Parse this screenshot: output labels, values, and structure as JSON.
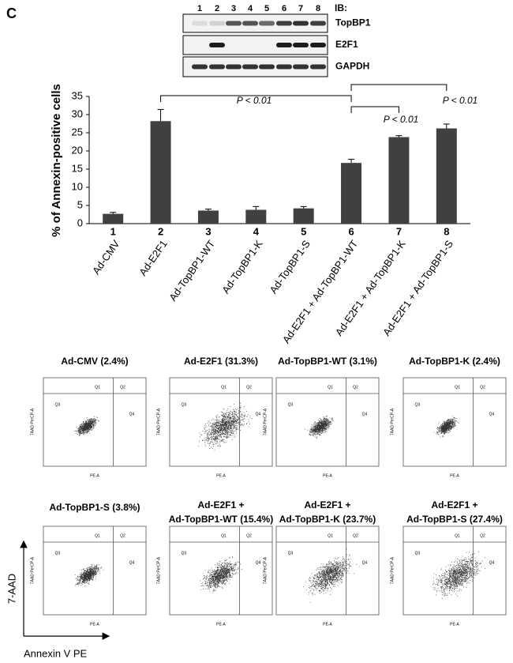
{
  "panel_label": "C",
  "blot": {
    "header": "IB:",
    "lanes": [
      "1",
      "2",
      "3",
      "4",
      "5",
      "6",
      "7",
      "8"
    ],
    "rows": [
      "TopBP1",
      "E2F1",
      "GAPDH"
    ]
  },
  "chart_data": {
    "type": "bar",
    "y_label": "% of Annexin-positive cells",
    "lane_labels": [
      "1",
      "2",
      "3",
      "4",
      "5",
      "6",
      "7",
      "8"
    ],
    "categories": [
      "Ad-CMV",
      "Ad-E2F1",
      "Ad-TopBP1-WT",
      "Ad-TopBP1-K",
      "Ad-TopBP1-S",
      "Ad-E2F1 + Ad-TopBP1-WT",
      "Ad-E2F1 + Ad-TopBP1-K",
      "Ad-E2F1 + Ad-TopBP1-S"
    ],
    "values": [
      2.7,
      28.2,
      3.6,
      3.8,
      4.2,
      16.7,
      23.8,
      26.2
    ],
    "errors": [
      0.4,
      3.2,
      0.4,
      0.9,
      0.5,
      1.0,
      0.4,
      1.2
    ],
    "color": "#404040",
    "ylim": [
      0,
      35
    ],
    "yticks": [
      0,
      5,
      10,
      15,
      20,
      25,
      30,
      35
    ],
    "annotations": [
      {
        "text": "P < 0.01",
        "between": [
          "2",
          "6"
        ]
      },
      {
        "text": "P < 0.01",
        "between": [
          "6",
          "7"
        ]
      },
      {
        "text": "P < 0.01",
        "between": [
          "6",
          "8"
        ]
      }
    ]
  },
  "flow": {
    "plots": [
      {
        "title": [
          "Ad-CMV (2.4%)"
        ]
      },
      {
        "title": [
          "Ad-E2F1 (31.3%)"
        ]
      },
      {
        "title": [
          "Ad-TopBP1-WT (3.1%)"
        ]
      },
      {
        "title": [
          "Ad-TopBP1-K (2.4%)"
        ]
      },
      {
        "title": [
          "Ad-TopBP1-S  (3.8%)"
        ]
      },
      {
        "title": [
          "Ad-E2F1 +",
          "Ad-TopBP1-WT (15.4%)"
        ]
      },
      {
        "title": [
          "Ad-E2F1 +",
          "Ad-TopBP1-K (23.7%)"
        ]
      },
      {
        "title": [
          "Ad-E2F1 +",
          "Ad-TopBP1-S (27.4%)"
        ]
      }
    ],
    "quadrants": [
      "Q1",
      "Q2",
      "Q3",
      "Q4"
    ],
    "y_axis": "7AAD PerCP-A",
    "x_axis": "PE-A"
  },
  "axis_arrows": {
    "y": "7-AAD",
    "x": "Annexin V PE"
  }
}
